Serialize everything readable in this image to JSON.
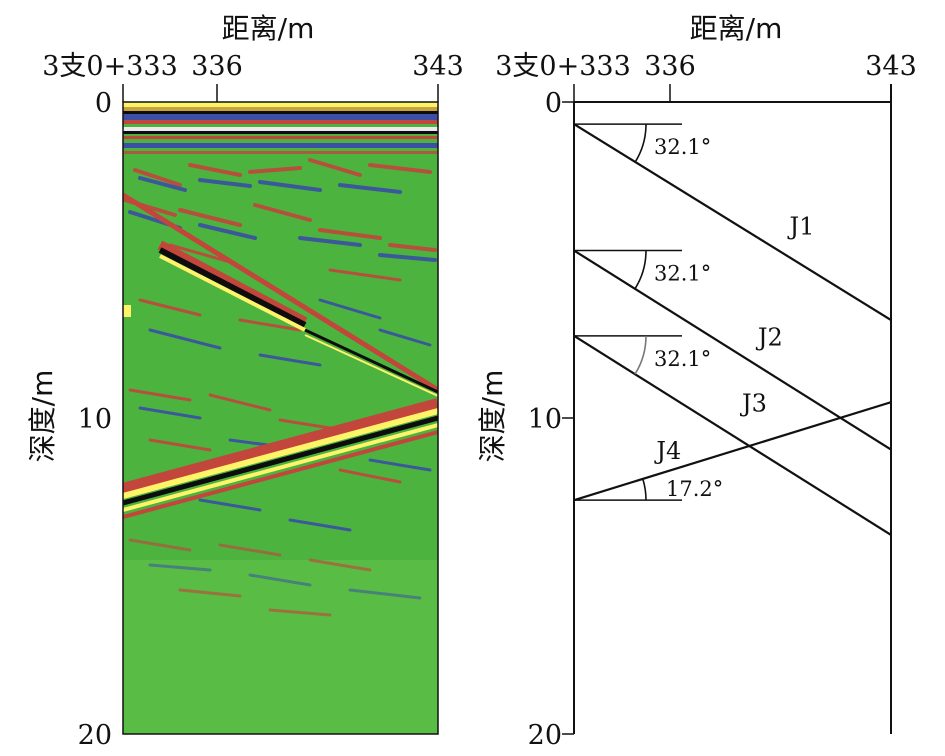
{
  "panels": [
    {
      "id": "radar",
      "x_axis_title": "距离/m",
      "y_axis_title": "深度/m",
      "x_ticks": [
        "3支0+333",
        "336",
        "343"
      ],
      "y_ticks": [
        "0",
        "10",
        "20"
      ]
    },
    {
      "id": "interpretation",
      "x_axis_title": "距离/m",
      "y_axis_title": "深度/m",
      "x_ticks": [
        "3支0+333",
        "336",
        "343"
      ],
      "y_ticks": [
        "0",
        "10",
        "20"
      ]
    }
  ],
  "x_range": [
    333,
    343
  ],
  "y_range": [
    0,
    20
  ],
  "joints": [
    {
      "name": "J1",
      "angle": "32.1°",
      "start": [
        333,
        0.7
      ],
      "end": [
        343,
        6.9
      ],
      "label_at": [
        339.8,
        4.2
      ]
    },
    {
      "name": "J2",
      "angle": "32.1°",
      "start": [
        333,
        4.7
      ],
      "end": [
        343,
        11.0
      ],
      "label_at": [
        338.8,
        7.7
      ]
    },
    {
      "name": "J3",
      "angle": "32.1°",
      "start": [
        333,
        7.4
      ],
      "end": [
        343,
        13.7
      ],
      "label_at": [
        338.3,
        9.8
      ]
    },
    {
      "name": "J4",
      "angle": "17.2°",
      "start": [
        333,
        12.6
      ],
      "end": [
        343,
        9.5
      ],
      "label_at": [
        335.6,
        11.3
      ]
    }
  ],
  "colors": {
    "radar_background": "#4cb33f",
    "reflector_bright": "#fff36a",
    "reflector_dark": "#0d0d0d",
    "band_red": "#c2463c",
    "band_blue": "#3a4fa5"
  }
}
